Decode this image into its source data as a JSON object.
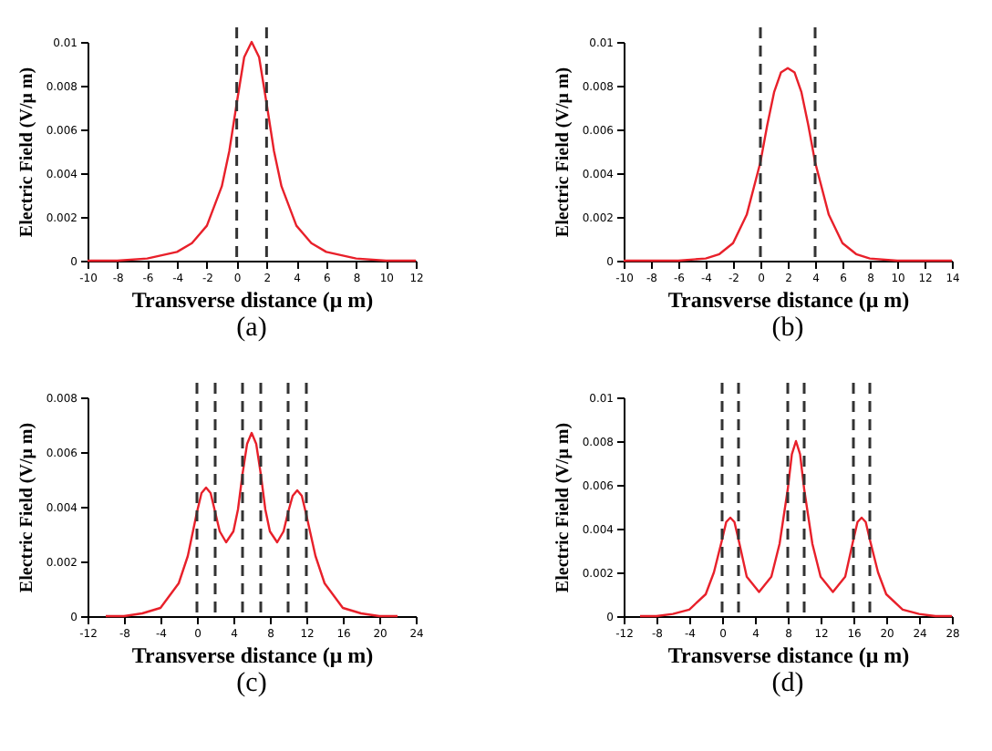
{
  "chart_data": [
    {
      "type": "line",
      "title": "(a)",
      "xlabel": "Transverse distance (μ m)",
      "ylabel": "Electric Field (V/μ m)",
      "xlim": [
        -10,
        12
      ],
      "xticks": [
        -10,
        -8,
        -6,
        -4,
        -2,
        0,
        2,
        4,
        6,
        8,
        10,
        12
      ],
      "ylim": [
        0,
        0.01
      ],
      "yticks": [
        0,
        0.002,
        0.004,
        0.006,
        0.008,
        0.01
      ],
      "grid": false,
      "line_style": "solid",
      "series": [
        {
          "color": "#e8202a",
          "x": [
            -10,
            -8,
            -6,
            -4,
            -3,
            -2,
            -1,
            -0.5,
            0,
            0.5,
            1,
            1.5,
            2,
            2.5,
            3,
            4,
            5,
            6,
            8,
            10,
            12
          ],
          "values": [
            0,
            0,
            0.0001,
            0.0004,
            0.0008,
            0.0016,
            0.0034,
            0.005,
            0.0072,
            0.0093,
            0.01,
            0.0093,
            0.0072,
            0.005,
            0.0034,
            0.0016,
            0.0008,
            0.0004,
            0.0001,
            0,
            0
          ]
        }
      ],
      "ref_lines": [
        {
          "axis": "x",
          "value": 0,
          "color": "#333333",
          "line_style": "dashed"
        },
        {
          "axis": "x",
          "value": 2,
          "color": "#333333",
          "line_style": "dashed"
        }
      ]
    },
    {
      "type": "line",
      "title": "(b)",
      "xlabel": "Transverse distance (μ m)",
      "ylabel": "Electric Field (V/μ m)",
      "xlim": [
        -10,
        14
      ],
      "xticks": [
        -10,
        -8,
        -6,
        -4,
        -2,
        0,
        2,
        4,
        6,
        8,
        10,
        12,
        14
      ],
      "ylim": [
        0,
        0.01
      ],
      "yticks": [
        0,
        0.002,
        0.004,
        0.006,
        0.008,
        0.01
      ],
      "grid": false,
      "line_style": "solid",
      "series": [
        {
          "color": "#e8202a",
          "x": [
            -10,
            -8,
            -6,
            -4,
            -3,
            -2,
            -1,
            0,
            0.5,
            1,
            1.5,
            2,
            2.5,
            3,
            3.5,
            4,
            5,
            6,
            7,
            8,
            10,
            12,
            14
          ],
          "values": [
            0,
            0,
            0,
            0.0001,
            0.0003,
            0.0008,
            0.0021,
            0.0045,
            0.0062,
            0.0077,
            0.0086,
            0.0088,
            0.0086,
            0.0077,
            0.0062,
            0.0045,
            0.0021,
            0.0008,
            0.0003,
            0.0001,
            0,
            0,
            0
          ]
        }
      ],
      "ref_lines": [
        {
          "axis": "x",
          "value": 0,
          "color": "#333333",
          "line_style": "dashed"
        },
        {
          "axis": "x",
          "value": 4,
          "color": "#333333",
          "line_style": "dashed"
        }
      ]
    },
    {
      "type": "line",
      "title": "(c)",
      "xlabel": "Transverse distance (μ m)",
      "ylabel": "Electric Field (V/μ m)",
      "xlim": [
        -12,
        24
      ],
      "xticks": [
        -12,
        -8,
        -4,
        0,
        4,
        8,
        12,
        16,
        20,
        24
      ],
      "ylim": [
        0,
        0.008
      ],
      "yticks": [
        0,
        0.002,
        0.004,
        0.006,
        0.008
      ],
      "grid": false,
      "line_style": "solid",
      "series": [
        {
          "color": "#e8202a",
          "x": [
            -10,
            -8,
            -6,
            -4,
            -2,
            -1,
            0,
            0.5,
            1,
            1.5,
            2,
            2.5,
            3.2,
            4,
            4.5,
            5,
            5.5,
            6,
            6.5,
            7,
            7.5,
            8,
            8.8,
            9.5,
            10,
            10.5,
            11,
            11.5,
            12,
            13,
            14,
            16,
            18,
            20,
            22
          ],
          "values": [
            0,
            0,
            0.0001,
            0.0003,
            0.0012,
            0.0022,
            0.0038,
            0.0045,
            0.0047,
            0.0045,
            0.0038,
            0.0031,
            0.0027,
            0.0031,
            0.0039,
            0.0052,
            0.0063,
            0.0067,
            0.0063,
            0.0052,
            0.0039,
            0.0031,
            0.0027,
            0.0031,
            0.0038,
            0.0044,
            0.0046,
            0.0044,
            0.0037,
            0.0022,
            0.0012,
            0.0003,
            0.0001,
            0,
            0
          ]
        }
      ],
      "ref_lines": [
        {
          "axis": "x",
          "value": 0,
          "color": "#333333",
          "line_style": "dashed"
        },
        {
          "axis": "x",
          "value": 2,
          "color": "#333333",
          "line_style": "dashed"
        },
        {
          "axis": "x",
          "value": 5,
          "color": "#333333",
          "line_style": "dashed"
        },
        {
          "axis": "x",
          "value": 7,
          "color": "#333333",
          "line_style": "dashed"
        },
        {
          "axis": "x",
          "value": 10,
          "color": "#333333",
          "line_style": "dashed"
        },
        {
          "axis": "x",
          "value": 12,
          "color": "#333333",
          "line_style": "dashed"
        }
      ]
    },
    {
      "type": "line",
      "title": "(d)",
      "xlabel": "Transverse distance (μ m)",
      "ylabel": "Electric Field (V/μ m)",
      "xlim": [
        -12,
        28
      ],
      "xticks": [
        -12,
        -8,
        -4,
        0,
        4,
        8,
        12,
        16,
        20,
        24,
        28
      ],
      "ylim": [
        0,
        0.01
      ],
      "yticks": [
        0,
        0.002,
        0.004,
        0.006,
        0.008,
        0.01
      ],
      "grid": false,
      "line_style": "solid",
      "series": [
        {
          "color": "#e8202a",
          "x": [
            -10,
            -8,
            -6,
            -4,
            -2,
            -1,
            0,
            0.5,
            1,
            1.5,
            2,
            3,
            4.5,
            6,
            7,
            8,
            8.5,
            9,
            9.5,
            10,
            11,
            12,
            13.5,
            15,
            16,
            16.5,
            17,
            17.5,
            18,
            19,
            20,
            22,
            24,
            26,
            28
          ],
          "values": [
            0,
            0,
            0.0001,
            0.0003,
            0.001,
            0.002,
            0.0035,
            0.0043,
            0.0045,
            0.0043,
            0.0035,
            0.0018,
            0.0011,
            0.0018,
            0.0033,
            0.0058,
            0.0074,
            0.008,
            0.0074,
            0.0058,
            0.0033,
            0.0018,
            0.0011,
            0.0018,
            0.0035,
            0.0043,
            0.0045,
            0.0043,
            0.0035,
            0.002,
            0.001,
            0.0003,
            0.0001,
            0,
            0
          ]
        }
      ],
      "ref_lines": [
        {
          "axis": "x",
          "value": 0,
          "color": "#333333",
          "line_style": "dashed"
        },
        {
          "axis": "x",
          "value": 2,
          "color": "#333333",
          "line_style": "dashed"
        },
        {
          "axis": "x",
          "value": 8,
          "color": "#333333",
          "line_style": "dashed"
        },
        {
          "axis": "x",
          "value": 10,
          "color": "#333333",
          "line_style": "dashed"
        },
        {
          "axis": "x",
          "value": 16,
          "color": "#333333",
          "line_style": "dashed"
        },
        {
          "axis": "x",
          "value": 18,
          "color": "#333333",
          "line_style": "dashed"
        }
      ]
    }
  ]
}
